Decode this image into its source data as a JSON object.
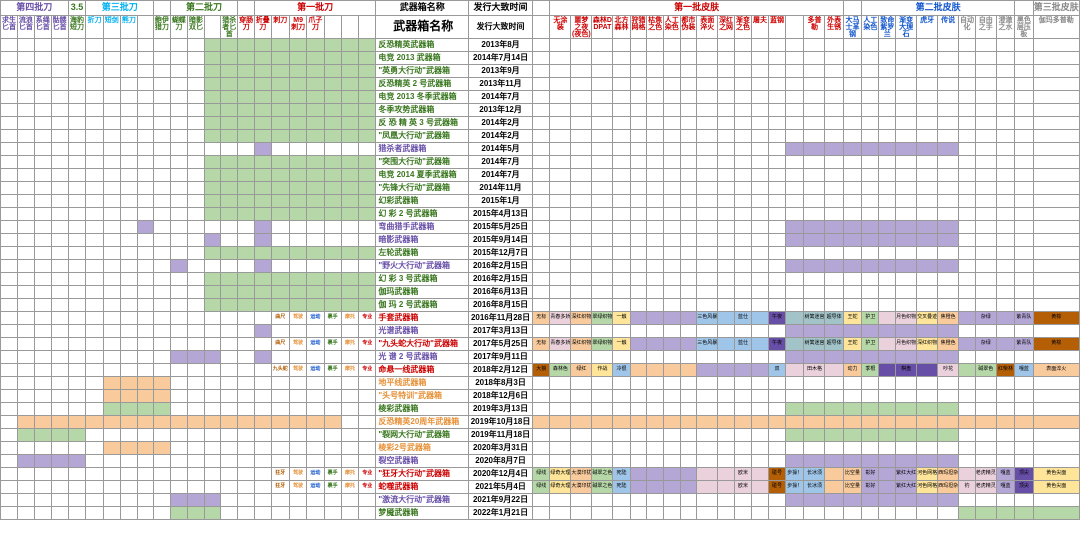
{
  "colors": {
    "green": "#b6d7a8",
    "purple": "#b4a7d6",
    "orange": "#f9cb9c",
    "blue": "#9fc5e8",
    "red_txt": "#cc0000",
    "green_txt": "#38761d",
    "blue_txt": "#1155cc",
    "cyan_txt": "#00b0f0",
    "purple_txt": "#674ea7",
    "orange_txt": "#e69138",
    "pink": "#ead1dc",
    "yellow": "#ffe599",
    "teal": "#a2c4c9",
    "brown": "#b45f06"
  },
  "groups": [
    {
      "label": "第四批刀",
      "span": 4,
      "color": "#674ea7"
    },
    {
      "label": "3.5",
      "span": 1,
      "color": "#38761d"
    },
    {
      "label": "第三批刀",
      "span": 4,
      "color": "#00b0f0"
    },
    {
      "label": "",
      "span": 1,
      "color": ""
    },
    {
      "label": "第二批刀",
      "span": 4,
      "color": "#38761d"
    },
    {
      "label": "",
      "span": 1,
      "color": ""
    },
    {
      "label": "第一批刀",
      "span": 7,
      "color": "#cc0000"
    },
    {
      "label": "武器箱名称",
      "span": 1,
      "color": "#000"
    },
    {
      "label": "发行大致时间",
      "span": 1,
      "color": "#000"
    },
    {
      "label": "",
      "span": 1,
      "color": ""
    },
    {
      "label": "第一批皮肤",
      "span": 16,
      "color": "#cc0000"
    },
    {
      "label": "",
      "span": 1,
      "color": ""
    },
    {
      "label": "第二批皮肤",
      "span": 8,
      "color": "#1155cc"
    },
    {
      "label": "",
      "span": 1,
      "color": ""
    },
    {
      "label": "第三批皮肤",
      "span": 6,
      "color": "#888"
    }
  ],
  "headers_left": [
    "求生匕首",
    "流浪匕首",
    "系绳匕首",
    "骷髅匕首",
    "海豹短刀",
    "折刀",
    "短剑",
    "熊刀",
    "",
    "鲍伊猎刀",
    "蝴蝶刀",
    "暗影双匕",
    "",
    "猎杀者匕首",
    "穿肠刀",
    "折叠刀",
    "刺刀",
    "M9刺刀",
    "爪子刀"
  ],
  "headers_right_g1": [
    "无涂装",
    "噩梦之夜(夜色)",
    "森林DDPAT",
    "北方森林",
    "狩猎网格",
    "枯焦之色",
    "人工染色",
    "都市伪装",
    "表面淬火",
    "深红之网",
    "渐变之色",
    "屠夫",
    "蓝钢",
    "",
    "多普勒",
    "外表生锈",
    "大马士革钢",
    "人工染色",
    "致命紫罗兰",
    "渐变大理石",
    "虎牙",
    "传说"
  ],
  "headers_right_g3": [
    "自动化",
    "自由之手",
    "澄澈之水",
    "黑色层压板",
    "伽玛多普勒"
  ],
  "rows": [
    {
      "name": "反恐精英武器箱",
      "date": "2013年8月",
      "nc": "#38761d",
      "fill": {
        "type": "green",
        "cols": "L12-22"
      }
    },
    {
      "name": "电竞 2013 武器箱",
      "date": "2014年7月14日",
      "nc": "#38761d",
      "fill": {
        "type": "green",
        "cols": "L12-22"
      }
    },
    {
      "name": "\"英勇大行动\"武器箱",
      "date": "2013年9月",
      "nc": "#38761d",
      "fill": {
        "type": "green",
        "cols": "L12-22"
      }
    },
    {
      "name": "反恐精英 2 号武器箱",
      "date": "2013年11月",
      "nc": "#38761d",
      "fill": {
        "type": "green",
        "cols": "L12-22"
      }
    },
    {
      "name": "电竞 2013 冬季武器箱",
      "date": "2014年7月",
      "nc": "#38761d",
      "fill": {
        "type": "green",
        "cols": "L12-22"
      }
    },
    {
      "name": "冬季攻势武器箱",
      "date": "2013年12月",
      "nc": "#38761d",
      "fill": {
        "type": "green",
        "cols": "L12-22"
      }
    },
    {
      "name": "反 恐 精 英  3  号武器箱",
      "date": "2014年2月",
      "nc": "#38761d",
      "fill": {
        "type": "green",
        "cols": "L12-22"
      }
    },
    {
      "name": "\"凤凰大行动\"武器箱",
      "date": "2014年2月",
      "nc": "#38761d",
      "fill": {
        "type": "green",
        "cols": "L12-22"
      }
    },
    {
      "name": "猎杀者武器箱",
      "date": "2014年5月",
      "nc": "#674ea7",
      "fill": {
        "type": "purple",
        "cols": "L15-15,R14-22"
      }
    },
    {
      "name": "\"突围大行动\"武器箱",
      "date": "2014年7月",
      "nc": "#38761d",
      "fill": {
        "type": "green",
        "cols": "L12-22"
      }
    },
    {
      "name": "电竞 2014 夏季武器箱",
      "date": "2014年7月",
      "nc": "#38761d",
      "fill": {
        "type": "green",
        "cols": "L12-22"
      }
    },
    {
      "name": "\"先锋大行动\"武器箱",
      "date": "2014年11月",
      "nc": "#38761d",
      "fill": {
        "type": "green",
        "cols": "L12-22"
      }
    },
    {
      "name": "幻彩武器箱",
      "date": "2015年1月",
      "nc": "#38761d",
      "fill": {
        "type": "green",
        "cols": "L12-22"
      }
    },
    {
      "name": "幻 彩  2  号武器箱",
      "date": "2015年4月13日",
      "nc": "#38761d",
      "fill": {
        "type": "green",
        "cols": "L12-22"
      }
    },
    {
      "name": "弯曲猎手武器箱",
      "date": "2015年5月25日",
      "nc": "#674ea7",
      "fill": {
        "type": "purple",
        "cols": "L8-8,L15-15,R14-22"
      }
    },
    {
      "name": "暗影武器箱",
      "date": "2015年9月14日",
      "nc": "#674ea7",
      "fill": {
        "type": "purple",
        "cols": "L12-12,L15-15,R14-22"
      }
    },
    {
      "name": "左轮武器箱",
      "date": "2015年12月7日",
      "nc": "#38761d",
      "fill": {
        "type": "green",
        "cols": "L12-22"
      }
    },
    {
      "name": "\"野火大行动\"武器箱",
      "date": "2016年2月15日",
      "nc": "#674ea7",
      "fill": {
        "type": "purple",
        "cols": "L10-10,L15-15,R14-22"
      }
    },
    {
      "name": "幻 彩  3  号武器箱",
      "date": "2016年2月15日",
      "nc": "#38761d",
      "fill": {
        "type": "green",
        "cols": "L12-22"
      }
    },
    {
      "name": "伽玛武器箱",
      "date": "2016年6月13日",
      "nc": "#38761d",
      "fill": {
        "type": "green",
        "cols": "L12-22"
      }
    },
    {
      "name": "伽 玛  2  号武器箱",
      "date": "2016年8月15日",
      "nc": "#38761d",
      "fill": {
        "type": "green",
        "cols": "L12-22"
      }
    },
    {
      "name": "手套武器箱",
      "date": "2016年11月28日",
      "nc": "#cc0000",
      "pre": [
        "曲尺",
        "驾驶",
        "运动",
        "裹手",
        "摩托",
        "专业"
      ],
      "fill": {
        "type": "data",
        "row": 0
      }
    },
    {
      "name": "光谱武器箱",
      "date": "2017年3月13日",
      "nc": "#674ea7",
      "fill": {
        "type": "purple",
        "cols": "L15-15,R14-22"
      }
    },
    {
      "name": "\"九头蛇大行动\"武器箱",
      "date": "2017年5月25日",
      "nc": "#cc0000",
      "pre": [
        "曲尺",
        "驾驶",
        "运动",
        "裹手",
        "摩托",
        "专业"
      ],
      "fill": {
        "type": "data",
        "row": 1
      }
    },
    {
      "name": "光 谱  2  号武器箱",
      "date": "2017年9月11日",
      "nc": "#674ea7",
      "fill": {
        "type": "purple",
        "cols": "L10-12,L15-15,R14-22"
      }
    },
    {
      "name": "命悬一线武器箱",
      "date": "2018年2月12日",
      "nc": "#cc0000",
      "pre": [
        "九头蛇",
        "驾驶",
        "运动",
        "裹手",
        "摩托",
        "专业"
      ],
      "fill": {
        "type": "data",
        "row": 2
      }
    },
    {
      "name": "地平线武器箱",
      "date": "2018年8月3日",
      "nc": "#e69138",
      "fill": {
        "type": "orange",
        "cols": "L6-9"
      }
    },
    {
      "name": "\"头号特训\"武器箱",
      "date": "2018年12月6日",
      "nc": "#e69138",
      "fill": {
        "type": "orange",
        "cols": "L6-9"
      }
    },
    {
      "name": "棱彩武器箱",
      "date": "2019年3月13日",
      "nc": "#38761d",
      "fill": {
        "type": "green",
        "cols": "L6-9,R14-22"
      }
    },
    {
      "name": "反恐精英20周年武器箱",
      "date": "2019年10月18日",
      "nc": "#e69138",
      "fill": {
        "type": "orange",
        "cols": "L1-19,R0-27"
      }
    },
    {
      "name": "\"裂网大行动\"武器箱",
      "date": "2019年11月18日",
      "nc": "#38761d",
      "fill": {
        "type": "green",
        "cols": "L1-4,R14-22"
      }
    },
    {
      "name": "棱彩2号武器箱",
      "date": "2020年3月31日",
      "nc": "#e69138",
      "fill": {
        "type": "orange",
        "cols": "L6-9"
      }
    },
    {
      "name": "裂空武器箱",
      "date": "2020年8月7日",
      "nc": "#674ea7",
      "fill": {
        "type": "purple",
        "cols": "L1-4,R14-22"
      }
    },
    {
      "name": "\"狂牙大行动\"武器箱",
      "date": "2020年12月4日",
      "nc": "#cc0000",
      "pre": [
        "狂牙",
        "驾驶",
        "运动",
        "裹手",
        "摩托",
        "专业"
      ],
      "fill": {
        "type": "data",
        "row": 3
      }
    },
    {
      "name": "蛇噬武器箱",
      "date": "2021年5月4日",
      "nc": "#cc0000",
      "pre": [
        "狂牙",
        "驾驶",
        "运动",
        "裹手",
        "摩托",
        "专业"
      ],
      "fill": {
        "type": "data",
        "row": 4
      }
    },
    {
      "name": "\"激流大行动\"武器箱",
      "date": "2021年9月22日",
      "nc": "#674ea7",
      "fill": {
        "type": "purple",
        "cols": "L10-12,R14-22"
      }
    },
    {
      "name": "梦魇武器箱",
      "date": "2022年1月21日",
      "nc": "#38761d",
      "fill": {
        "type": "green",
        "cols": "L10-12,R23-27"
      }
    }
  ],
  "data_cells": [
    [
      [
        "无标",
        "#f9cb9c"
      ],
      [
        "青春多娇",
        "#ead1dc"
      ],
      [
        "深红织物",
        "#f9cb9c"
      ],
      [
        "翠绿织物",
        "#b6d7a8"
      ],
      [
        "一触",
        "#ffe599"
      ],
      [
        "",
        "#b4a7d6"
      ],
      [
        "",
        "#b4a7d6"
      ],
      [
        "",
        "#b4a7d6"
      ],
      [
        "",
        "#b4a7d6"
      ],
      [
        "三色风暴",
        "#9fc5e8"
      ],
      [
        "",
        "#9fc5e8"
      ],
      [
        "蓝仕",
        "#9fc5e8"
      ],
      [
        "",
        "#9fc5e8"
      ],
      [
        "午夜",
        "#674ea7"
      ],
      [
        "",
        "#a2c4c9"
      ],
      [
        "树篱迷宫",
        "#a2c4c9"
      ],
      [
        "超导体",
        "#a2c4c9"
      ],
      [
        "王蛇",
        "#ffe599"
      ],
      [
        "护卫",
        "#b6d7a8"
      ],
      [
        "",
        "#ead1dc"
      ],
      [
        "月色织物",
        "#ead1dc"
      ],
      [
        "交叉叠迹",
        "#ffe599"
      ],
      [
        "焦橙色",
        "#f9cb9c"
      ],
      [
        "",
        "#b4a7d6"
      ],
      [
        "杂绿",
        "#b4a7d6"
      ],
      [
        "",
        "#b4a7d6"
      ],
      [
        "紫青队",
        "#b4a7d6"
      ],
      [
        "黄棕",
        "#b45f06"
      ]
    ],
    [
      [
        "无标",
        "#f9cb9c"
      ],
      [
        "青春多娇",
        "#ead1dc"
      ],
      [
        "深红织物",
        "#f9cb9c"
      ],
      [
        "翠绿织物",
        "#b6d7a8"
      ],
      [
        "一触",
        "#ffe599"
      ],
      [
        "",
        "#b4a7d6"
      ],
      [
        "",
        "#b4a7d6"
      ],
      [
        "",
        "#b4a7d6"
      ],
      [
        "",
        "#b4a7d6"
      ],
      [
        "三色风暴",
        "#9fc5e8"
      ],
      [
        "",
        "#9fc5e8"
      ],
      [
        "蓝仕",
        "#9fc5e8"
      ],
      [
        "",
        "#9fc5e8"
      ],
      [
        "午夜",
        "#674ea7"
      ],
      [
        "",
        "#a2c4c9"
      ],
      [
        "树篱迷宫",
        "#a2c4c9"
      ],
      [
        "超导体",
        "#a2c4c9"
      ],
      [
        "王蛇",
        "#ffe599"
      ],
      [
        "护卫",
        "#b6d7a8"
      ],
      [
        "",
        "#ead1dc"
      ],
      [
        "月色织物",
        "#ead1dc"
      ],
      [
        "深红织物",
        "#ffe599"
      ],
      [
        "焦橙色",
        "#f9cb9c"
      ],
      [
        "",
        "#b4a7d6"
      ],
      [
        "杂绿",
        "#b4a7d6"
      ],
      [
        "",
        "#b4a7d6"
      ],
      [
        "紫青队",
        "#b4a7d6"
      ],
      [
        "黄棕",
        "#b45f06"
      ]
    ],
    [
      [
        "大狼",
        "#b45f06"
      ],
      [
        "森林色",
        "#b6d7a8"
      ],
      [
        "绿红",
        "#f9cb9c"
      ],
      [
        "作战",
        "#ffe599"
      ],
      [
        "冷很",
        "#9fc5e8"
      ],
      [
        "",
        "#f9cb9c"
      ],
      [
        "",
        "#f9cb9c"
      ],
      [
        "",
        "#f9cb9c"
      ],
      [
        "",
        "#f9cb9c"
      ],
      [
        "",
        "#b4a7d6"
      ],
      [
        "",
        "#b4a7d6"
      ],
      [
        "",
        "#b4a7d6"
      ],
      [
        "",
        "#b4a7d6"
      ],
      [
        "双",
        "#9fc5e8"
      ],
      [
        "",
        "#ead1dc"
      ],
      [
        "田木格",
        "#ead1dc"
      ],
      [
        "",
        "#ead1dc"
      ],
      [
        "动力",
        "#f9cb9c"
      ],
      [
        "季根",
        "#b6d7a8"
      ],
      [
        "",
        "#674ea7"
      ],
      [
        "棋盘",
        "#674ea7"
      ],
      [
        "",
        "#674ea7"
      ],
      [
        "吵花",
        "#ead1dc"
      ],
      [
        "",
        "#b6d7a8"
      ],
      [
        "碱翠色",
        "#b6d7a8"
      ],
      [
        "红柴林",
        "#b45f06"
      ],
      [
        "嘎蓝",
        "#9fc5e8"
      ],
      [
        "表面淬火",
        "#f9cb9c"
      ]
    ],
    [
      [
        "绿线",
        "#b6d7a8"
      ],
      [
        "绿奇大理",
        "#ffe599"
      ],
      [
        "大漠印犹",
        "#f9cb9c"
      ],
      [
        "碱翠之色",
        "#b6d7a8"
      ],
      [
        "死陆",
        "#9fc5e8"
      ],
      [
        "",
        "#b4a7d6"
      ],
      [
        "",
        "#b4a7d6"
      ],
      [
        "",
        "#b4a7d6"
      ],
      [
        "",
        "#b4a7d6"
      ],
      [
        "",
        "#ead1dc"
      ],
      [
        "",
        "#ead1dc"
      ],
      [
        "欧米",
        "#ead1dc"
      ],
      [
        "",
        "#ead1dc"
      ],
      [
        "碰号",
        "#b45f06"
      ],
      [
        "步操！",
        "#9fc5e8"
      ],
      [
        "长冰须",
        "#9fc5e8"
      ],
      [
        "",
        "#f9cb9c"
      ],
      [
        "比空量",
        "#f9cb9c"
      ],
      [
        "彰好",
        "#b4a7d6"
      ],
      [
        "",
        "#b4a7d6"
      ],
      [
        "紫红大红",
        "#b4a7d6"
      ],
      [
        "河色网格",
        "#ffe599"
      ],
      [
        "西玛坦杂",
        "#f9cb9c"
      ],
      [
        "",
        "#ead1dc"
      ],
      [
        "老虎精灵",
        "#ead1dc"
      ],
      [
        "嘎蓝",
        "#b4a7d6"
      ],
      [
        "顶尖",
        "#674ea7"
      ],
      [
        "黄色尖面",
        "#ffe599"
      ]
    ],
    [
      [
        "绿线",
        "#b6d7a8"
      ],
      [
        "绿奇大理",
        "#ffe599"
      ],
      [
        "大漠印犹",
        "#f9cb9c"
      ],
      [
        "碱翠之色",
        "#b6d7a8"
      ],
      [
        "死陆",
        "#9fc5e8"
      ],
      [
        "",
        "#b4a7d6"
      ],
      [
        "",
        "#b4a7d6"
      ],
      [
        "",
        "#b4a7d6"
      ],
      [
        "",
        "#b4a7d6"
      ],
      [
        "",
        "#ead1dc"
      ],
      [
        "",
        "#ead1dc"
      ],
      [
        "欧米",
        "#ead1dc"
      ],
      [
        "",
        "#ead1dc"
      ],
      [
        "碰号",
        "#b45f06"
      ],
      [
        "步操！",
        "#9fc5e8"
      ],
      [
        "长冰须",
        "#9fc5e8"
      ],
      [
        "",
        "#f9cb9c"
      ],
      [
        "比空量",
        "#f9cb9c"
      ],
      [
        "彰好",
        "#b4a7d6"
      ],
      [
        "",
        "#b4a7d6"
      ],
      [
        "紫红大红",
        "#b4a7d6"
      ],
      [
        "河色网格",
        "#ffe599"
      ],
      [
        "西玛坦杂",
        "#f9cb9c"
      ],
      [
        "钓",
        "#ead1dc"
      ],
      [
        "老虎精灵",
        "#ead1dc"
      ],
      [
        "嘎蓝",
        "#b4a7d6"
      ],
      [
        "顶尖",
        "#674ea7"
      ],
      [
        "黄色尖面",
        "#ffe599"
      ]
    ]
  ],
  "labels": {
    "case_header": "武器箱名称",
    "date_header": "发行大致时间"
  }
}
